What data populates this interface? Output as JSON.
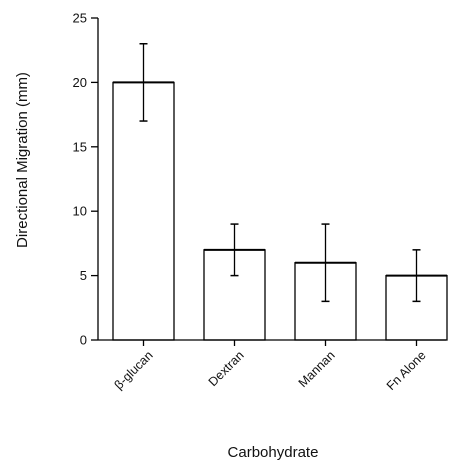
{
  "chart_data": {
    "type": "bar",
    "categories": [
      "β-glucan",
      "Dextran",
      "Mannan",
      "Fn Alone"
    ],
    "values": [
      20,
      7,
      6,
      5
    ],
    "errors": [
      3,
      2,
      3,
      2
    ],
    "xlabel": "Carbohydrate",
    "ylabel": "Directional Migration (mm)",
    "ylim": [
      0,
      25
    ],
    "yticks": [
      0,
      5,
      10,
      15,
      20,
      25
    ],
    "grid": false,
    "bar_color": "#ffffff",
    "edge_color": "#000000"
  }
}
